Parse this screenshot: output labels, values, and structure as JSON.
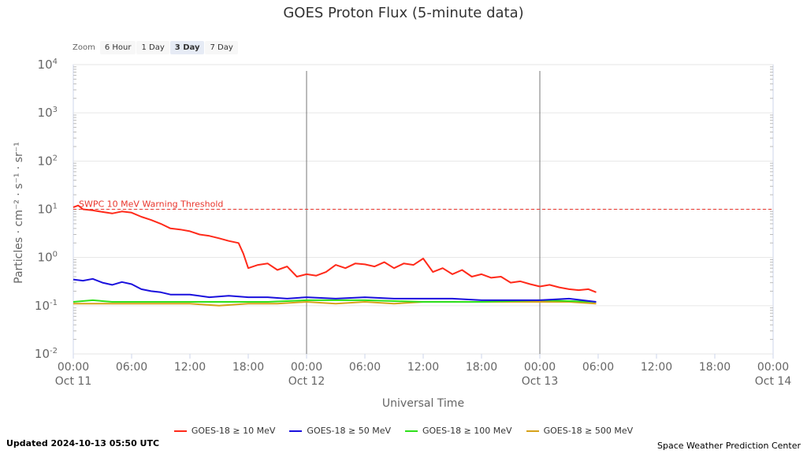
{
  "title": "GOES Proton Flux (5-minute data)",
  "zoom": {
    "label": "Zoom",
    "buttons": [
      "6 Hour",
      "1 Day",
      "3 Day",
      "7 Day"
    ],
    "selected": "3 Day"
  },
  "footer": {
    "updated": "Updated 2024-10-13 05:50 UTC",
    "credit": "Space Weather Prediction Center"
  },
  "chart_data": {
    "type": "line",
    "xlabel": "Universal Time",
    "ylabel": "Particles · cm⁻² · s⁻¹ · sr⁻¹",
    "y_scale": "log",
    "ylim": [
      0.01,
      10000
    ],
    "y_ticks": [
      {
        "value": 10000,
        "base": "10",
        "exp": "4"
      },
      {
        "value": 1000,
        "base": "10",
        "exp": "3"
      },
      {
        "value": 100,
        "base": "10",
        "exp": "2"
      },
      {
        "value": 10,
        "base": "10",
        "exp": "1"
      },
      {
        "value": 1,
        "base": "10",
        "exp": "0"
      },
      {
        "value": 0.1,
        "base": "10",
        "exp": "-1"
      },
      {
        "value": 0.01,
        "base": "10",
        "exp": "-2"
      }
    ],
    "xlim": [
      "2024-10-11 00:00",
      "2024-10-14 00:00"
    ],
    "x_ticks": [
      {
        "hour": 0,
        "label": "00:00",
        "sub": "Oct 11"
      },
      {
        "hour": 6,
        "label": "06:00",
        "sub": ""
      },
      {
        "hour": 12,
        "label": "12:00",
        "sub": ""
      },
      {
        "hour": 18,
        "label": "18:00",
        "sub": ""
      },
      {
        "hour": 24,
        "label": "00:00",
        "sub": "Oct 12"
      },
      {
        "hour": 30,
        "label": "06:00",
        "sub": ""
      },
      {
        "hour": 36,
        "label": "12:00",
        "sub": ""
      },
      {
        "hour": 42,
        "label": "18:00",
        "sub": ""
      },
      {
        "hour": 48,
        "label": "00:00",
        "sub": "Oct 13"
      },
      {
        "hour": 54,
        "label": "06:00",
        "sub": ""
      },
      {
        "hour": 60,
        "label": "12:00",
        "sub": ""
      },
      {
        "hour": 66,
        "label": "18:00",
        "sub": ""
      },
      {
        "hour": 72,
        "label": "00:00",
        "sub": "Oct 14"
      }
    ],
    "day_lines_hours": [
      24,
      48
    ],
    "threshold": {
      "value": 10,
      "label": "SWPC 10 MeV Warning Threshold",
      "color": "#e8362d"
    },
    "grid": true,
    "legend_position": "bottom",
    "series": [
      {
        "name": "GOES-18 ≥ 10 MeV",
        "color": "#ff2a1a",
        "x_hours": [
          0,
          0.5,
          1,
          2,
          3,
          4,
          5,
          6,
          7,
          8,
          9,
          10,
          11,
          12,
          13,
          14,
          15,
          16,
          17,
          17.5,
          18,
          19,
          20,
          21,
          22,
          23,
          24,
          25,
          26,
          27,
          28,
          29,
          30,
          31,
          32,
          33,
          34,
          35,
          36,
          37,
          38,
          39,
          40,
          41,
          42,
          43,
          44,
          45,
          46,
          47,
          48,
          49,
          50,
          51,
          52,
          53,
          53.8
        ],
        "values": [
          11,
          12,
          10,
          9.5,
          8.8,
          8.2,
          9,
          8.5,
          7,
          6,
          5,
          4,
          3.8,
          3.5,
          3,
          2.8,
          2.5,
          2.2,
          2,
          1.2,
          0.6,
          0.7,
          0.75,
          0.55,
          0.65,
          0.4,
          0.45,
          0.42,
          0.5,
          0.7,
          0.6,
          0.75,
          0.72,
          0.65,
          0.8,
          0.6,
          0.75,
          0.7,
          0.95,
          0.5,
          0.6,
          0.45,
          0.55,
          0.4,
          0.45,
          0.38,
          0.4,
          0.3,
          0.32,
          0.28,
          0.25,
          0.27,
          0.24,
          0.22,
          0.21,
          0.22,
          0.19
        ]
      },
      {
        "name": "GOES-18 ≥ 50 MeV",
        "color": "#1a10dd",
        "x_hours": [
          0,
          1,
          2,
          3,
          4,
          5,
          6,
          7,
          8,
          9,
          10,
          12,
          14,
          16,
          18,
          20,
          22,
          24,
          27,
          30,
          33,
          36,
          39,
          42,
          45,
          48,
          51,
          53.8
        ],
        "values": [
          0.35,
          0.33,
          0.36,
          0.3,
          0.27,
          0.31,
          0.28,
          0.22,
          0.2,
          0.19,
          0.17,
          0.17,
          0.15,
          0.16,
          0.15,
          0.15,
          0.14,
          0.15,
          0.14,
          0.15,
          0.14,
          0.14,
          0.14,
          0.13,
          0.13,
          0.13,
          0.14,
          0.12
        ]
      },
      {
        "name": "GOES-18 ≥ 100 MeV",
        "color": "#2ee01a",
        "x_hours": [
          0,
          2,
          4,
          6,
          8,
          10,
          12,
          16,
          20,
          24,
          30,
          36,
          42,
          48,
          53.8
        ],
        "values": [
          0.12,
          0.13,
          0.12,
          0.12,
          0.12,
          0.12,
          0.12,
          0.12,
          0.12,
          0.13,
          0.13,
          0.12,
          0.12,
          0.13,
          0.12
        ]
      },
      {
        "name": "GOES-18 ≥ 500 MeV",
        "color": "#d6a21a",
        "x_hours": [
          0,
          3,
          6,
          9,
          12,
          15,
          18,
          21,
          24,
          27,
          30,
          33,
          36,
          39,
          42,
          45,
          48,
          51,
          53.8
        ],
        "values": [
          0.11,
          0.11,
          0.11,
          0.11,
          0.11,
          0.1,
          0.11,
          0.11,
          0.12,
          0.11,
          0.12,
          0.11,
          0.12,
          0.12,
          0.12,
          0.12,
          0.12,
          0.12,
          0.11
        ]
      }
    ]
  }
}
